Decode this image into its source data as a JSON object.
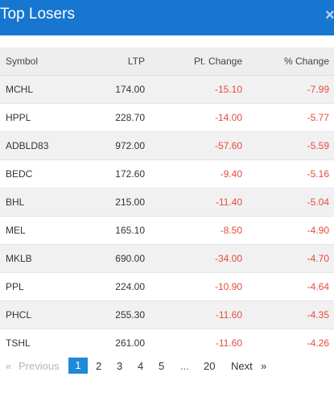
{
  "header": {
    "title": "Top Losers",
    "close_glyph": "×",
    "close_icon": "close-icon"
  },
  "table": {
    "columns": [
      "Symbol",
      "LTP",
      "Pt. Change",
      "% Change"
    ],
    "rows": [
      [
        "MCHL",
        "174.00",
        "-15.10",
        "-7.99"
      ],
      [
        "HPPL",
        "228.70",
        "-14.00",
        "-5.77"
      ],
      [
        "ADBLD83",
        "972.00",
        "-57.60",
        "-5.59"
      ],
      [
        "BEDC",
        "172.60",
        "-9.40",
        "-5.16"
      ],
      [
        "BHL",
        "215.00",
        "-11.40",
        "-5.04"
      ],
      [
        "MEL",
        "165.10",
        "-8.50",
        "-4.90"
      ],
      [
        "MKLB",
        "690.00",
        "-34.00",
        "-4.70"
      ],
      [
        "PPL",
        "224.00",
        "-10.90",
        "-4.64"
      ],
      [
        "PHCL",
        "255.30",
        "-11.60",
        "-4.35"
      ],
      [
        "TSHL",
        "261.00",
        "-11.60",
        "-4.26"
      ]
    ],
    "negative_color": "#e74c3c"
  },
  "pagination": {
    "prev_arrow": "«",
    "prev_label": "Previous",
    "pages": [
      "1",
      "2",
      "3",
      "4",
      "5"
    ],
    "ellipsis": "...",
    "last_page": "20",
    "next_label": "Next",
    "next_arrow": "»",
    "current_page": "1"
  },
  "colors": {
    "header_bg": "#1776cf",
    "active_page_bg": "#1f8ad8"
  }
}
